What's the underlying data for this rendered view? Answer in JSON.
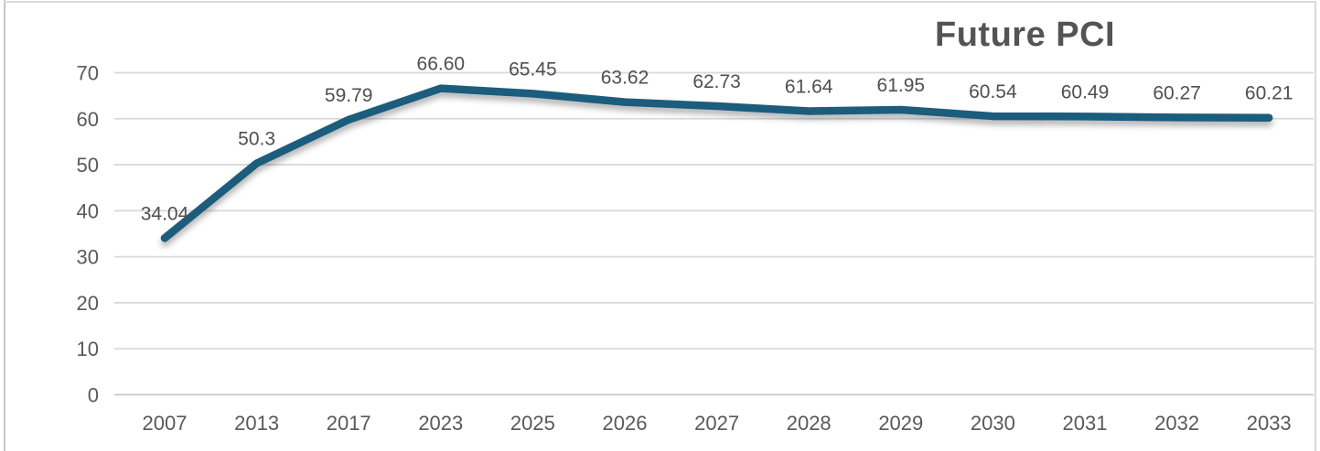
{
  "chart_data": {
    "type": "line",
    "title": "Future PCI",
    "categories": [
      "2007",
      "2013",
      "2017",
      "2023",
      "2025",
      "2026",
      "2027",
      "2028",
      "2029",
      "2030",
      "2031",
      "2032",
      "2033"
    ],
    "series": [
      {
        "name": "Future PCI",
        "values": [
          34.04,
          50.3,
          59.79,
          66.6,
          65.45,
          63.62,
          62.73,
          61.64,
          61.95,
          60.54,
          60.49,
          60.27,
          60.21
        ]
      }
    ],
    "data_labels": [
      "34.04",
      "50.3",
      "59.79",
      "66.60",
      "65.45",
      "63.62",
      "62.73",
      "61.64",
      "61.95",
      "60.54",
      "60.49",
      "60.27",
      "60.21"
    ],
    "y_ticks": [
      "0",
      "10",
      "20",
      "30",
      "40",
      "50",
      "60",
      "70"
    ],
    "ylim": [
      0,
      70
    ],
    "xlabel": "",
    "ylabel": "",
    "grid": "horizontal",
    "legend": "none",
    "colors": {
      "line": "#1e5c7d",
      "grid": "#d9d9d9",
      "axis": "#c9c9c9",
      "axis_text": "#595959",
      "data_label_text": "#4f4f4f",
      "title_text": "#545454",
      "frame_border": "#d0d0d0"
    }
  }
}
